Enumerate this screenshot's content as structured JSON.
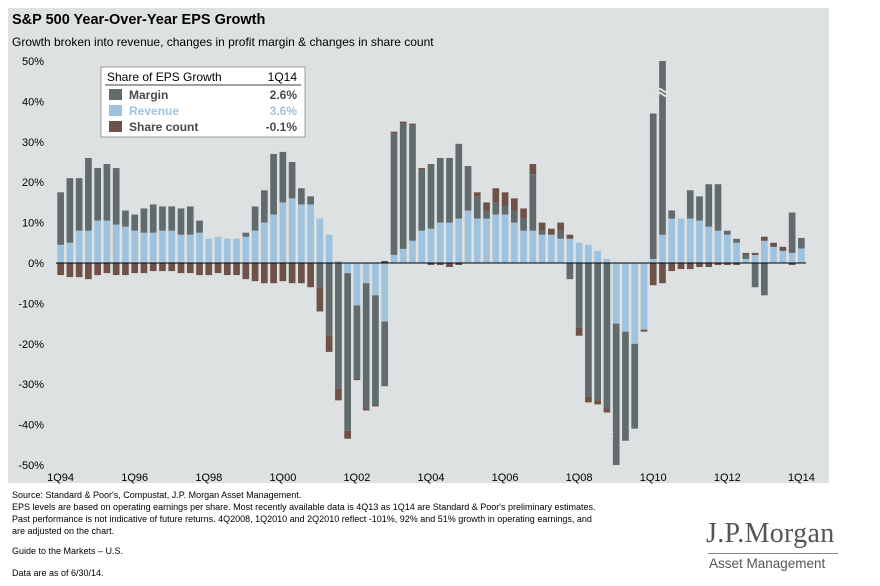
{
  "header": {
    "title": "S&P 500 Year-Over-Year EPS Growth",
    "subtitle": "Growth broken into revenue, changes in profit margin & changes in share count"
  },
  "footer": {
    "source": "Source: Standard & Poor's, Compustat, J.P. Morgan Asset Management.",
    "note1": "EPS levels are based on operating earnings per share. Most recently available data is 4Q13 as 1Q14 are Standard & Poor's preliminary estimates.",
    "note2": "Past performance is not indicative of future returns. 4Q2008, 1Q2010 and 2Q2010 reflect -101%, 92% and 51% growth in operating earnings, and",
    "note3": "are adjusted on the chart.",
    "guide": "Guide to the Markets – U.S.",
    "asof": "Data are as of 6/30/14."
  },
  "logo": {
    "main": "J.P.Morgan",
    "sub": "Asset Management"
  },
  "colors": {
    "margin": "#616b6b",
    "revenue": "#9fc3de",
    "share_count": "#6e5248",
    "background": "#dde1e2"
  },
  "chart_data": {
    "type": "bar",
    "stacked": true,
    "legend": {
      "placement": "top-left",
      "header_label": "Share of EPS Growth",
      "header_value": "1Q14",
      "entries": [
        {
          "key": "margin",
          "label": "Margin",
          "value": "2.6%",
          "color": "#616b6b"
        },
        {
          "key": "revenue",
          "label": "Revenue",
          "value": "3.6%",
          "color": "#9fc3de"
        },
        {
          "key": "share",
          "label": "Share count",
          "value": "-0.1%",
          "color": "#6e5248"
        }
      ]
    },
    "ylim": [
      -50,
      50
    ],
    "yticks": [
      "50%",
      "40%",
      "30%",
      "20%",
      "10%",
      "0%",
      "-10%",
      "-20%",
      "-30%",
      "-40%",
      "-50%"
    ],
    "xticks": [
      {
        "index": 0,
        "label": "1Q94"
      },
      {
        "index": 8,
        "label": "1Q96"
      },
      {
        "index": 16,
        "label": "1Q98"
      },
      {
        "index": 24,
        "label": "1Q00"
      },
      {
        "index": 32,
        "label": "1Q02"
      },
      {
        "index": 40,
        "label": "1Q04"
      },
      {
        "index": 48,
        "label": "1Q06"
      },
      {
        "index": 56,
        "label": "1Q08"
      },
      {
        "index": 64,
        "label": "1Q10"
      },
      {
        "index": 72,
        "label": "1Q12"
      },
      {
        "index": 80,
        "label": "1Q14"
      }
    ],
    "quarters": [
      "1Q94",
      "2Q94",
      "3Q94",
      "4Q94",
      "1Q95",
      "2Q95",
      "3Q95",
      "4Q95",
      "1Q96",
      "2Q96",
      "3Q96",
      "4Q96",
      "1Q97",
      "2Q97",
      "3Q97",
      "4Q97",
      "1Q98",
      "2Q98",
      "3Q98",
      "4Q98",
      "1Q99",
      "2Q99",
      "3Q99",
      "4Q99",
      "1Q00",
      "2Q00",
      "3Q00",
      "4Q00",
      "1Q01",
      "2Q01",
      "3Q01",
      "4Q01",
      "1Q02",
      "2Q02",
      "3Q02",
      "4Q02",
      "1Q03",
      "2Q03",
      "3Q03",
      "4Q03",
      "1Q04",
      "2Q04",
      "3Q04",
      "4Q04",
      "1Q05",
      "2Q05",
      "3Q05",
      "4Q05",
      "1Q06",
      "2Q06",
      "3Q06",
      "4Q06",
      "1Q07",
      "2Q07",
      "3Q07",
      "4Q07",
      "1Q08",
      "2Q08",
      "3Q08",
      "4Q08",
      "1Q09",
      "2Q09",
      "3Q09",
      "4Q09",
      "1Q10",
      "2Q10",
      "3Q10",
      "4Q10",
      "1Q11",
      "2Q11",
      "3Q11",
      "4Q11",
      "1Q12",
      "2Q12",
      "3Q12",
      "4Q12",
      "1Q13",
      "2Q13",
      "3Q13",
      "4Q13",
      "1Q14"
    ],
    "series": [
      {
        "name": "Revenue",
        "key": "revenue",
        "values": [
          4.5,
          5,
          8,
          8,
          10.5,
          10.5,
          9.5,
          9,
          8,
          7.5,
          7.5,
          8,
          8,
          7,
          7,
          7.5,
          6,
          6.5,
          6,
          6,
          6.5,
          8,
          10,
          12,
          15,
          16,
          14.5,
          14.5,
          11,
          7,
          0.5,
          -2.5,
          -10.5,
          -5,
          -8,
          -14.5,
          2,
          3.5,
          5.5,
          8,
          8.5,
          10,
          10,
          11,
          13,
          11,
          11,
          12,
          12,
          10,
          8,
          8,
          7,
          7,
          6,
          6,
          5,
          4.5,
          3,
          1,
          -15,
          -17,
          -20,
          -16.5,
          1,
          7,
          11,
          11,
          11,
          10.5,
          9,
          8,
          7,
          5,
          1,
          2,
          5.5,
          4,
          3,
          2.5,
          3.6
        ]
      },
      {
        "name": "Margin",
        "key": "margin",
        "values": [
          13,
          16,
          13,
          18,
          13,
          14,
          14,
          4,
          4,
          6,
          7,
          6,
          6,
          6.5,
          7,
          3,
          0,
          0,
          0,
          0,
          1,
          6,
          8,
          15,
          12.5,
          9,
          4,
          2,
          -6,
          -18,
          -31,
          -39,
          -18,
          -31,
          -27,
          -16,
          30,
          31,
          28.5,
          15,
          16,
          16,
          16,
          18.5,
          11,
          5.5,
          2,
          3,
          2,
          3,
          3,
          14,
          1,
          0,
          2,
          -4,
          -16,
          -33,
          -34,
          -36,
          -35,
          -27,
          -21,
          0,
          36,
          43,
          2,
          0,
          7,
          6,
          10.5,
          11.5,
          1,
          1,
          1,
          -6,
          -8,
          0,
          0,
          10,
          2.6
        ]
      },
      {
        "name": "Share count",
        "key": "share",
        "values": [
          -3,
          -3.5,
          -3.5,
          -4,
          -3,
          -2.5,
          -3,
          -3,
          -2.5,
          -2.5,
          -2,
          -2,
          -2,
          -2.5,
          -2.5,
          -3,
          -3,
          -2.5,
          -3,
          -3,
          -4,
          -4.5,
          -5,
          -5,
          -4.5,
          -5,
          -5,
          -6,
          -6,
          -4,
          -3,
          -2,
          -0.5,
          -0.5,
          -0.5,
          0.5,
          0.5,
          0.5,
          0.5,
          0.5,
          -0.5,
          -0.5,
          -1,
          -0.5,
          0,
          1,
          2,
          3.5,
          3.5,
          3,
          2.5,
          2.5,
          2,
          1.5,
          2,
          1,
          -2,
          -1.5,
          -1,
          -1,
          -0.5,
          0,
          0,
          -0.5,
          -5.5,
          -5,
          -2,
          -1.5,
          -1.5,
          -1,
          -1,
          -0.5,
          -0.5,
          -0.5,
          0.5,
          0.5,
          1,
          1,
          1,
          -0.5,
          -0.1
        ]
      }
    ]
  }
}
